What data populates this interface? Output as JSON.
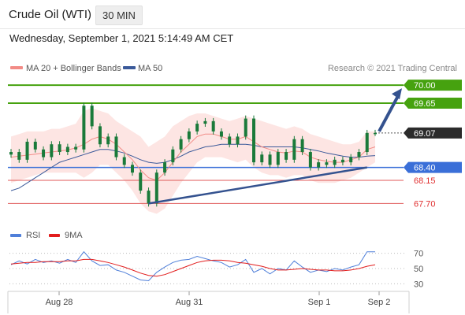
{
  "header": {
    "title": "Crude Oil (WTI)",
    "timeframe": "30 MIN",
    "datetime": "Wednesday, September 1, 2021 5:14:49 AM CET"
  },
  "legend": {
    "ma20_label": "MA 20 + Bollinger Bands",
    "ma50_label": "MA 50",
    "rsi_label": "RSI",
    "nine_ma_label": "9MA",
    "credit": "Research © 2021 Trading Central"
  },
  "colors": {
    "ma20": "#f28b86",
    "ma50": "#3b5a9a",
    "bollinger_fill": "#fde0de",
    "candle": "#1a7a3a",
    "resistance": "#46a20f",
    "support_blue": "#3a6fd8",
    "support_red": "#e05a5a",
    "trendline": "#34528f",
    "rsi": "#4f7fd9",
    "nine_ma": "#e21d1d",
    "current_price": "#2b2b2b"
  },
  "chart_data": {
    "type": "line",
    "title": "Crude Oil (WTI)",
    "timeframe": "30 MIN",
    "x_ticks": [
      "Aug 28",
      "Aug 31",
      "Sep 1",
      "Sep 2"
    ],
    "price_axis": {
      "ylim": [
        67.4,
        70.2
      ]
    },
    "levels": [
      {
        "label": "70.00",
        "value": 70.0,
        "kind": "resistance"
      },
      {
        "label": "69.65",
        "value": 69.65,
        "kind": "resistance"
      },
      {
        "label": "69.07",
        "value": 69.07,
        "kind": "current"
      },
      {
        "label": "68.40",
        "value": 68.4,
        "kind": "support"
      },
      {
        "label": "68.15",
        "value": 68.15,
        "kind": "support"
      },
      {
        "label": "67.70",
        "value": 67.7,
        "kind": "support"
      }
    ],
    "price_series": {
      "x": [
        0,
        3,
        6,
        9,
        12,
        15,
        18,
        21,
        24,
        27,
        30,
        33,
        36,
        39,
        42,
        45,
        48,
        51,
        54,
        57,
        60,
        63,
        66,
        69,
        72,
        75,
        78,
        81,
        84,
        87,
        90,
        93,
        96,
        99,
        102,
        105,
        108,
        111,
        114,
        117,
        120,
        123,
        126,
        129,
        132,
        135
      ],
      "close": [
        68.7,
        68.55,
        68.9,
        68.75,
        68.6,
        68.85,
        68.7,
        68.8,
        68.75,
        69.6,
        69.2,
        68.85,
        69.0,
        68.6,
        68.45,
        68.3,
        67.95,
        67.7,
        68.3,
        68.5,
        68.75,
        68.95,
        69.1,
        69.25,
        69.3,
        69.1,
        69.0,
        68.85,
        69.0,
        69.35,
        68.5,
        68.65,
        68.45,
        68.7,
        68.55,
        68.95,
        68.7,
        68.4,
        68.5,
        68.45,
        68.55,
        68.5,
        68.6,
        68.7,
        69.07,
        69.07
      ]
    },
    "ma20_series": [
      68.6,
      68.62,
      68.64,
      68.66,
      68.68,
      68.7,
      68.72,
      68.74,
      68.78,
      68.85,
      68.95,
      69.0,
      68.95,
      68.85,
      68.7,
      68.55,
      68.35,
      68.2,
      68.15,
      68.3,
      68.5,
      68.7,
      68.85,
      69.0,
      69.05,
      69.05,
      69.0,
      68.95,
      68.95,
      69.0,
      68.9,
      68.8,
      68.75,
      68.7,
      68.68,
      68.72,
      68.7,
      68.6,
      68.55,
      68.52,
      68.5,
      68.5,
      68.55,
      68.6,
      68.75,
      68.8
    ],
    "ma50_series": [
      67.95,
      68.0,
      68.1,
      68.2,
      68.3,
      68.4,
      68.5,
      68.55,
      68.6,
      68.65,
      68.7,
      68.75,
      68.75,
      68.72,
      68.68,
      68.62,
      68.55,
      68.5,
      68.48,
      68.5,
      68.55,
      68.62,
      68.7,
      68.75,
      68.8,
      68.82,
      68.85,
      68.85,
      68.85,
      68.85,
      68.83,
      68.8,
      68.8,
      68.8,
      68.8,
      68.8,
      68.78,
      68.75,
      68.72,
      68.68,
      68.65,
      68.62,
      68.6,
      68.6,
      68.62,
      68.63
    ],
    "bollinger_upper": [
      69.0,
      69.05,
      69.1,
      69.1,
      69.1,
      69.15,
      69.15,
      69.2,
      69.25,
      69.5,
      69.55,
      69.5,
      69.45,
      69.3,
      69.2,
      69.1,
      69.0,
      68.8,
      68.9,
      69.0,
      69.2,
      69.3,
      69.4,
      69.45,
      69.45,
      69.4,
      69.35,
      69.3,
      69.35,
      69.4,
      69.35,
      69.3,
      69.25,
      69.2,
      69.15,
      69.2,
      69.15,
      69.05,
      69.0,
      68.95,
      68.9,
      68.85,
      68.85,
      68.9,
      69.1,
      69.1
    ],
    "bollinger_lower": [
      68.1,
      68.15,
      68.2,
      68.25,
      68.3,
      68.3,
      68.3,
      68.3,
      68.3,
      68.2,
      68.3,
      68.45,
      68.45,
      68.3,
      68.15,
      67.95,
      67.7,
      67.55,
      67.5,
      67.6,
      67.85,
      68.1,
      68.3,
      68.5,
      68.6,
      68.6,
      68.6,
      68.55,
      68.5,
      68.55,
      68.4,
      68.3,
      68.25,
      68.25,
      68.2,
      68.25,
      68.25,
      68.15,
      68.1,
      68.1,
      68.1,
      68.15,
      68.2,
      68.3,
      68.4,
      68.5
    ],
    "projection": {
      "from": 69.07,
      "to": 70.0
    },
    "trendline": {
      "from": 67.7,
      "to": 68.4
    },
    "rsi_axis": {
      "ylim": [
        20,
        80
      ],
      "ticks": [
        "70",
        "50",
        "30"
      ]
    },
    "rsi_series": [
      55,
      60,
      56,
      62,
      58,
      60,
      57,
      62,
      58,
      72,
      60,
      54,
      55,
      48,
      45,
      40,
      35,
      34,
      45,
      52,
      58,
      61,
      62,
      66,
      63,
      60,
      58,
      52,
      55,
      62,
      45,
      50,
      43,
      50,
      48,
      60,
      52,
      45,
      48,
      46,
      50,
      48,
      52,
      55,
      72,
      72
    ],
    "nine_ma_series": [
      56,
      57,
      58,
      58,
      59,
      59,
      59,
      60,
      60,
      62,
      62,
      60,
      58,
      55,
      52,
      48,
      44,
      41,
      40,
      42,
      46,
      50,
      54,
      58,
      60,
      61,
      61,
      60,
      58,
      57,
      55,
      53,
      50,
      48,
      48,
      49,
      50,
      49,
      48,
      48,
      47,
      47,
      48,
      50,
      53,
      55
    ]
  }
}
